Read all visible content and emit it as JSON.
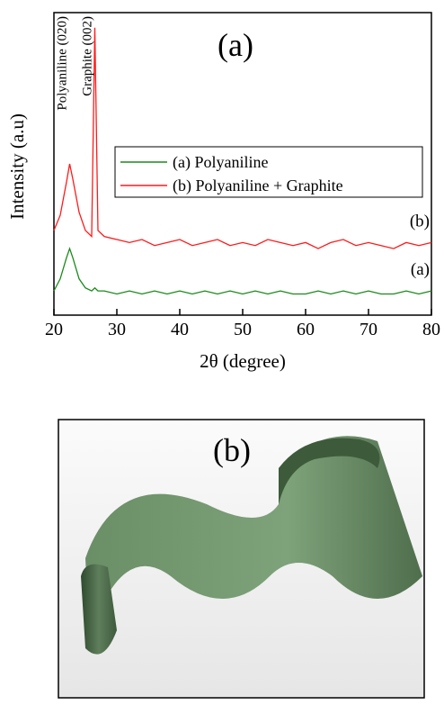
{
  "chart_data": {
    "type": "line",
    "title": "(a)",
    "x_label": "2θ (degree)",
    "y_label": "Intensity (a.u)",
    "x": [
      20,
      21,
      22,
      22.5,
      23,
      24,
      25,
      26,
      26.5,
      27,
      28,
      30,
      32,
      34,
      36,
      38,
      40,
      42,
      44,
      46,
      48,
      50,
      52,
      54,
      56,
      58,
      60,
      62,
      64,
      66,
      68,
      70,
      72,
      74,
      76,
      78,
      80
    ],
    "series": [
      {
        "name": "(a) Polyaniline",
        "color": "#1a8a1a",
        "curve_label": "(a)",
        "values": [
          8,
          12,
          19,
          22,
          19,
          12,
          9,
          8,
          9,
          8,
          8,
          7,
          8,
          7,
          8,
          7,
          8,
          7,
          8,
          7,
          8,
          7,
          8,
          7,
          8,
          7,
          7,
          8,
          7,
          8,
          7,
          8,
          7,
          7,
          8,
          7,
          8
        ]
      },
      {
        "name": "(b) Polyaniline + Graphite",
        "color": "#ff1a1a",
        "curve_label": "(b)",
        "values": [
          28,
          33,
          44,
          50,
          45,
          34,
          28,
          26,
          95,
          28,
          26,
          25,
          24,
          25,
          23,
          24,
          25,
          23,
          24,
          25,
          23,
          24,
          23,
          25,
          24,
          23,
          24,
          22,
          24,
          25,
          23,
          24,
          23,
          22,
          24,
          23,
          24
        ]
      }
    ],
    "annotations": [
      {
        "text": "Polyaniline (020)",
        "x": 22.5
      },
      {
        "text": "Graphite (002)",
        "x": 26.5
      }
    ],
    "xlim": [
      20,
      80
    ],
    "xticks": [
      20,
      30,
      40,
      50,
      60,
      70,
      80
    ],
    "ylim": [
      0,
      100
    ]
  },
  "photo": {
    "label": "(b)"
  }
}
